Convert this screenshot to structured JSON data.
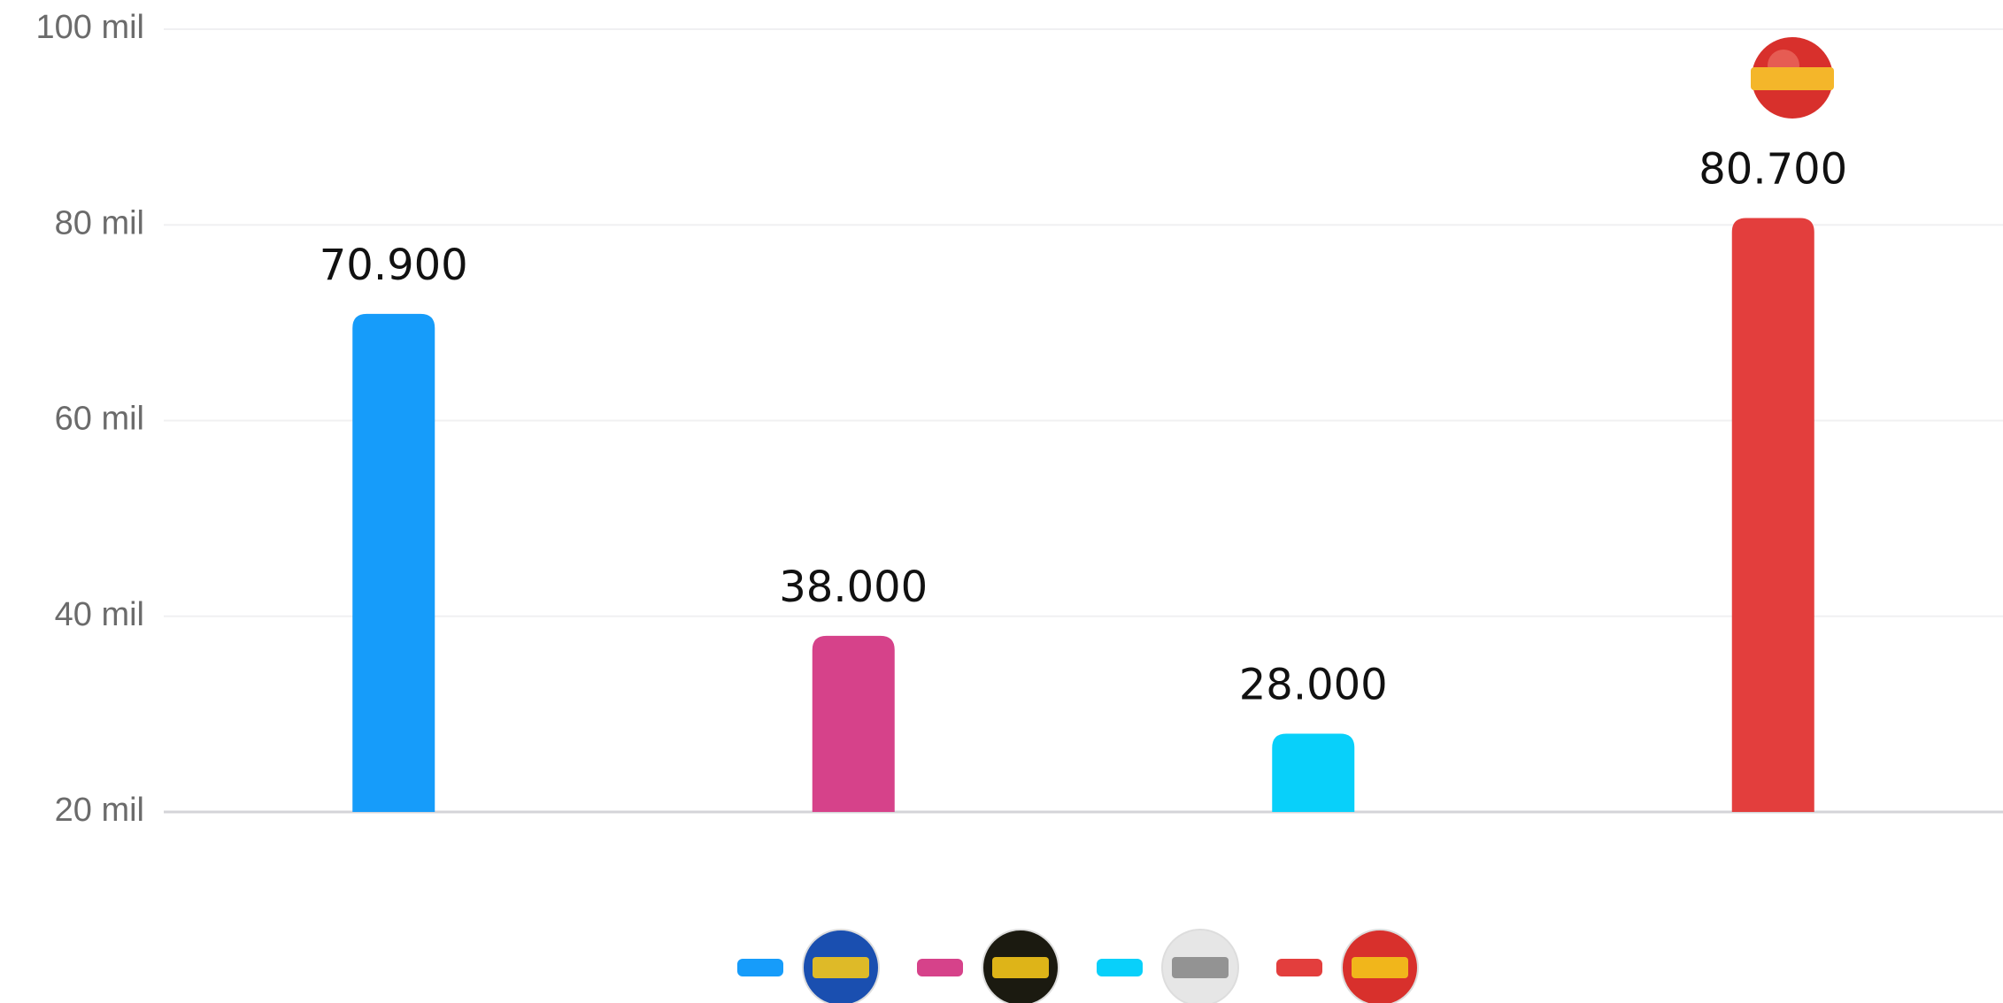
{
  "chart_data": {
    "type": "bar",
    "categories": [
      null,
      null,
      null,
      null
    ],
    "values": [
      70900,
      38000,
      28000,
      80700
    ],
    "value_labels": [
      "70.900",
      "38.000",
      "28.000",
      "80.700"
    ],
    "colors": [
      "#169cfa",
      "#d6428a",
      "#08d0fa",
      "#e33e3d"
    ],
    "ylim": [
      20000,
      100000
    ],
    "yticks": [
      {
        "value": 20000,
        "label": "20 mil"
      },
      {
        "value": 40000,
        "label": "40 mil"
      },
      {
        "value": 60000,
        "label": "60 mil"
      },
      {
        "value": 80000,
        "label": "80 mil"
      },
      {
        "value": 100000,
        "label": "100 mil"
      }
    ],
    "grid": true
  }
}
